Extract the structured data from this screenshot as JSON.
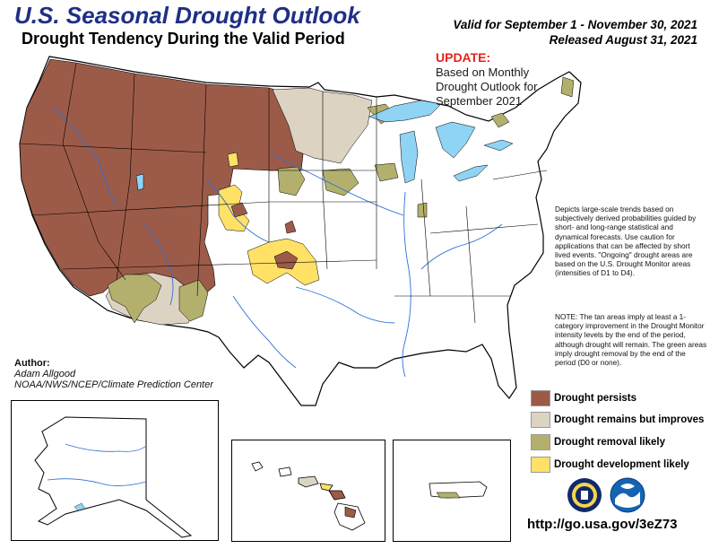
{
  "header": {
    "title": "U.S. Seasonal Drought Outlook",
    "subtitle": "Drought Tendency During the Valid Period",
    "valid": "Valid for September 1 - November 30, 2021",
    "released": "Released August 31, 2021"
  },
  "update": {
    "heading": "UPDATE:",
    "body": "Based on Monthly Drought Outlook for September 2021"
  },
  "description": {
    "main": "Depicts large-scale trends based on subjectively derived probabilities guided by short- and long-range statistical and dynamical forecasts. Use caution for applications that can be affected by short lived events. \"Ongoing\" drought areas are based on the U.S. Drought Monitor areas (intensities of D1 to D4).",
    "note": "NOTE: The tan areas imply at least a 1-category improvement in the Drought Monitor intensity levels by the end of the period, although drought will remain. The green areas imply drought removal by the end of the period (D0 or none)."
  },
  "author": {
    "label": "Author:",
    "name": "Adam Allgood",
    "org": "NOAA/NWS/NCEP/Climate Prediction Center"
  },
  "legend": [
    {
      "label": "Drought persists",
      "color": "#9c5b48"
    },
    {
      "label": "Drought remains but improves",
      "color": "#dcd3c2"
    },
    {
      "label": "Drought removal likely",
      "color": "#b3b06e"
    },
    {
      "label": "Drought development likely",
      "color": "#ffe166"
    }
  ],
  "footer": {
    "url": "http://go.usa.gov/3eZ73"
  },
  "colors": {
    "title_blue": "#1f2f86",
    "update_red": "#e8211c",
    "water": "#8fd3f5",
    "rivers": "#2e6fd8",
    "boundaries": "#000000"
  },
  "icons": [
    "doc-seal-icon",
    "noaa-logo-icon"
  ]
}
